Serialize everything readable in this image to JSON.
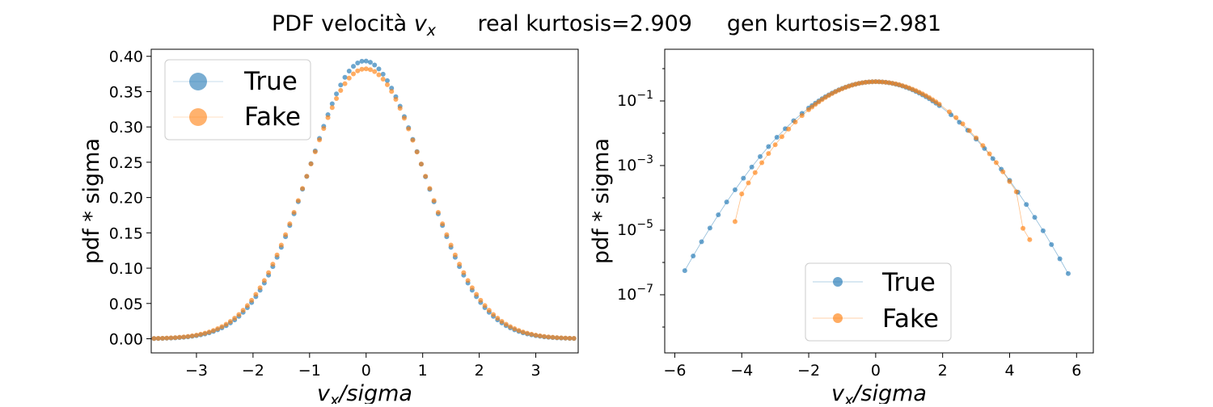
{
  "figure": {
    "title_main": "PDF velocità ",
    "title_var": "v",
    "title_sub": "x",
    "title_real": "real kurtosis=2.909",
    "title_gen": "gen kurtosis=2.981"
  },
  "colors": {
    "true": "#1f77b4",
    "fake": "#ff7f0e"
  },
  "chart_data": [
    {
      "type": "scatter",
      "xlabel": "v_x/sigma",
      "ylabel": "pdf * sigma",
      "xlim": [
        -3.8,
        3.75
      ],
      "ylim": [
        -0.02,
        0.41
      ],
      "xticks": [
        -3,
        -2,
        -1,
        0,
        1,
        2,
        3
      ],
      "yticks": [
        0.0,
        0.05,
        0.1,
        0.15,
        0.2,
        0.25,
        0.3,
        0.35,
        0.4
      ],
      "ytick_labels": [
        "0.00",
        "0.05",
        "0.10",
        "0.15",
        "0.20",
        "0.25",
        "0.30",
        "0.35",
        "0.40"
      ],
      "legend": {
        "position": "upper left",
        "entries": [
          "True",
          "Fake"
        ]
      },
      "series": [
        {
          "name": "True",
          "color": "#1f77b4",
          "mu": 0.0,
          "sigma": 1.0,
          "peak": 0.392,
          "peak_x": 0.22,
          "x_range": [
            -3.75,
            3.7
          ],
          "step": 0.075
        },
        {
          "name": "Fake",
          "color": "#ff7f0e",
          "mu": 0.0,
          "sigma": 1.02,
          "peak": 0.39,
          "peak_x": 0.05,
          "x_range": [
            -3.75,
            3.7
          ],
          "step": 0.075
        }
      ]
    },
    {
      "type": "scatter",
      "scale_y": "log",
      "xlabel": "v_x/sigma",
      "ylabel": "pdf * sigma",
      "xlim": [
        -6.3,
        6.5
      ],
      "ylim_log10": [
        -8.8,
        0.6
      ],
      "xticks": [
        -6,
        -4,
        -2,
        0,
        2,
        4,
        6
      ],
      "yticks_exp": [
        -1,
        -3,
        -5,
        -7
      ],
      "legend": {
        "position": "lower center",
        "entries": [
          "True",
          "Fake"
        ]
      },
      "series": [
        {
          "name": "True",
          "color": "#1f77b4",
          "x_range": [
            -5.7,
            5.85
          ],
          "tail_step": 0.25,
          "core_step": 0.1
        },
        {
          "name": "Fake",
          "color": "#ff7f0e",
          "x_range": [
            -4.2,
            4.65
          ],
          "tail_step": 0.2,
          "core_step": 0.1
        }
      ]
    }
  ]
}
